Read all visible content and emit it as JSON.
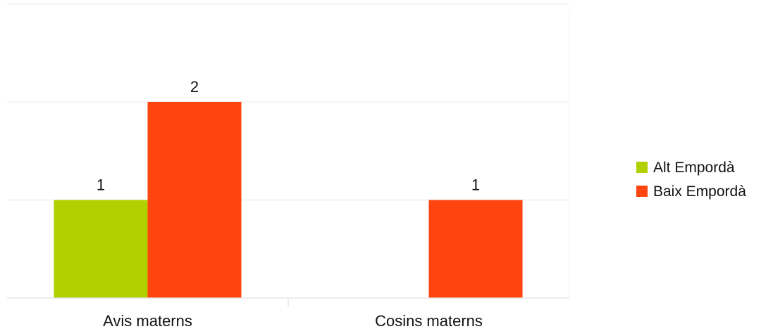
{
  "chart_data": {
    "type": "bar",
    "categories": [
      "Avis materns",
      "Cosins materns"
    ],
    "series": [
      {
        "name": "Alt Empordà",
        "color": "#b2d000",
        "values": [
          1,
          null
        ]
      },
      {
        "name": "Baix Empordà",
        "color": "#ff450f",
        "values": [
          2,
          1
        ]
      }
    ],
    "title": "",
    "xlabel": "",
    "ylabel": "",
    "ylim": [
      0,
      3
    ],
    "grid": true,
    "legend_position": "right",
    "data_labels": true
  }
}
